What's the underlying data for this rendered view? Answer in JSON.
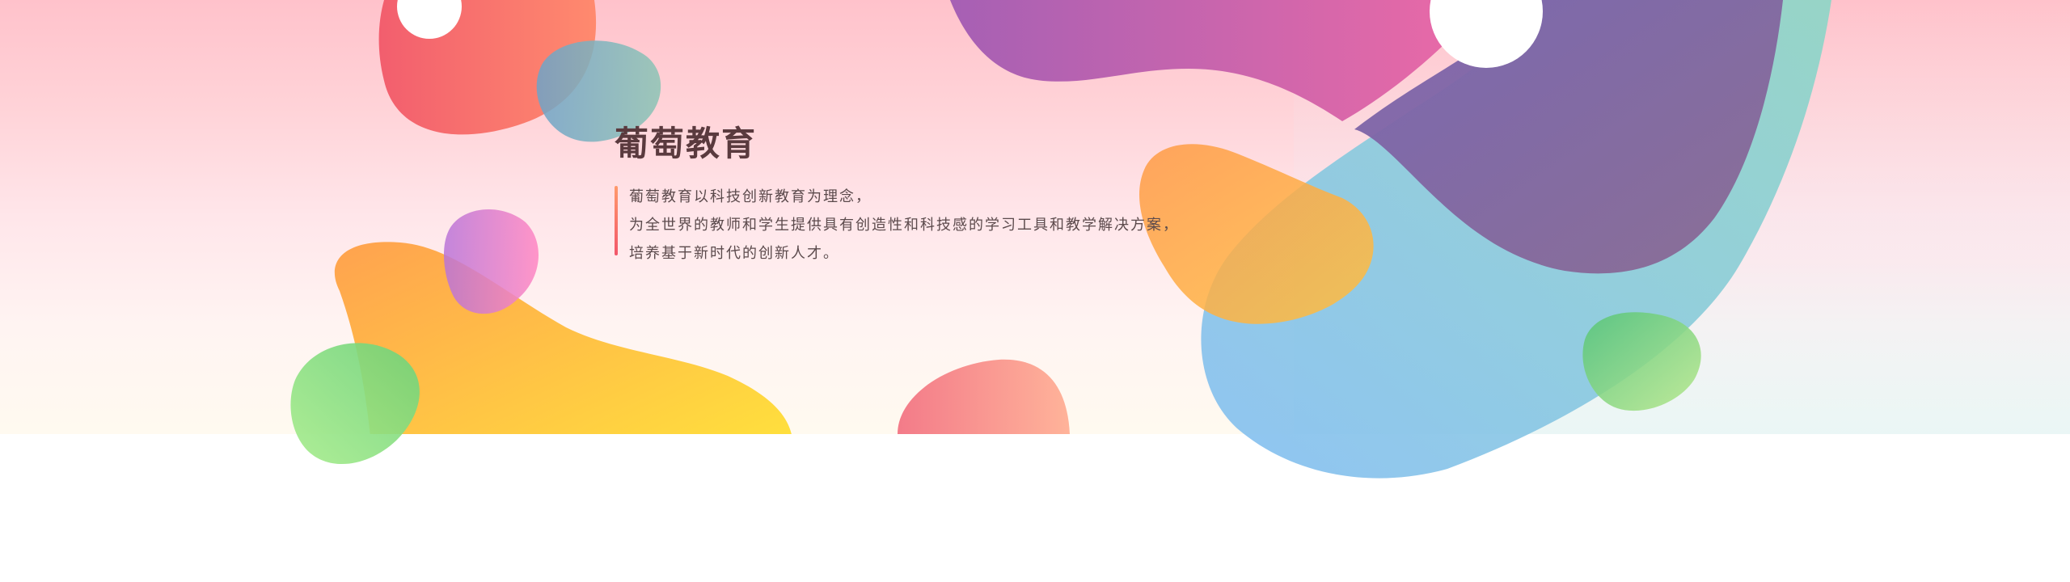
{
  "brand": {
    "title": "葡萄教育"
  },
  "description": {
    "lines": [
      "葡萄教育以科技创新教育为理念，",
      "为全世界的教师和学生提供具有创造性和科技感的学习工具和教学解决方案，",
      "培养基于新时代的创新人才。"
    ]
  },
  "colors": {
    "banner_top": "#ffc2cb",
    "banner_bottom": "#fffaf0",
    "title": "#5a3a3e",
    "text": "#5b4a4c",
    "accent_bar_top": "#ff9a6b",
    "accent_bar_bottom": "#f2566a"
  },
  "decorations": [
    "red-blob",
    "teal-blob",
    "white-circle-left",
    "orange-yellow-blob",
    "pink-purple-blob",
    "green-blob-left",
    "coral-blob-bottom",
    "purple-pink-blob",
    "white-circle-right",
    "teal-blue-blob",
    "violet-blob",
    "orange-blob-right",
    "green-blob-right"
  ]
}
